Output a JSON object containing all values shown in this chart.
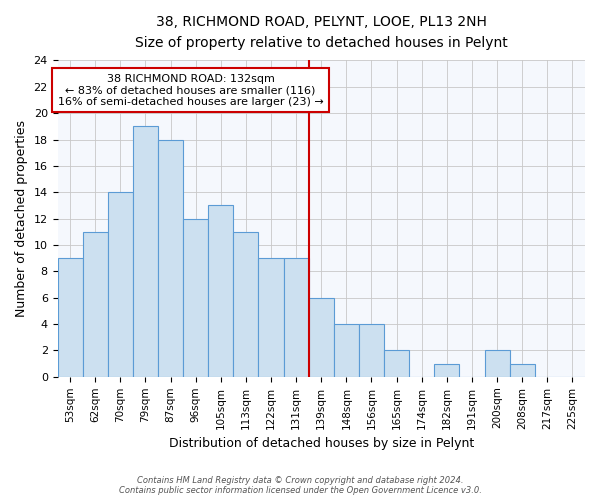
{
  "title": "38, RICHMOND ROAD, PELYNT, LOOE, PL13 2NH",
  "subtitle": "Size of property relative to detached houses in Pelynt",
  "xlabel": "Distribution of detached houses by size in Pelynt",
  "ylabel": "Number of detached properties",
  "bin_labels": [
    "53sqm",
    "62sqm",
    "70sqm",
    "79sqm",
    "87sqm",
    "96sqm",
    "105sqm",
    "113sqm",
    "122sqm",
    "131sqm",
    "139sqm",
    "148sqm",
    "156sqm",
    "165sqm",
    "174sqm",
    "182sqm",
    "191sqm",
    "200sqm",
    "208sqm",
    "217sqm",
    "225sqm"
  ],
  "bar_heights": [
    9,
    11,
    14,
    19,
    18,
    12,
    13,
    11,
    9,
    9,
    6,
    4,
    4,
    2,
    0,
    1,
    0,
    2,
    1,
    0,
    0
  ],
  "bar_color": "#cce0f0",
  "bar_edge_color": "#5b9bd5",
  "grid_color": "#c8c8c8",
  "marker_line_color": "#cc0000",
  "marker_after_index": 9,
  "ylim": [
    0,
    24
  ],
  "yticks": [
    0,
    2,
    4,
    6,
    8,
    10,
    12,
    14,
    16,
    18,
    20,
    22,
    24
  ],
  "annotation_title": "38 RICHMOND ROAD: 132sqm",
  "annotation_line1": "← 83% of detached houses are smaller (116)",
  "annotation_line2": "16% of semi-detached houses are larger (23) →",
  "annotation_box_color": "#ffffff",
  "annotation_box_edge_color": "#cc0000",
  "footnote1": "Contains HM Land Registry data © Crown copyright and database right 2024.",
  "footnote2": "Contains public sector information licensed under the Open Government Licence v3.0.",
  "bg_color": "#ffffff",
  "plot_bg_color": "#f5f8fd"
}
